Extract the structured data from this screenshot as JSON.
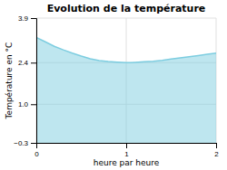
{
  "chart_data": {
    "type": "area",
    "title": "Evolution de la température",
    "x_label": "heure par heure",
    "y_label": "Température en °C",
    "x": [
      0,
      0.1,
      0.2,
      0.3,
      0.4,
      0.5,
      0.6,
      0.7,
      0.8,
      0.9,
      1.0,
      1.05,
      1.1,
      1.2,
      1.3,
      1.4,
      1.5,
      1.6,
      1.7,
      1.8,
      1.9,
      2.0
    ],
    "y": [
      3.25,
      3.1,
      2.95,
      2.83,
      2.72,
      2.62,
      2.53,
      2.47,
      2.44,
      2.42,
      2.4,
      2.4,
      2.41,
      2.43,
      2.45,
      2.48,
      2.52,
      2.56,
      2.6,
      2.64,
      2.68,
      2.72
    ],
    "xlim": [
      0,
      2
    ],
    "ylim": [
      -0.3,
      3.9
    ],
    "xticks": [
      0,
      1,
      2
    ],
    "yticks": [
      {
        "value": -0.3,
        "label": "−0.3"
      },
      {
        "value": 1.0,
        "label": "1.0"
      },
      2.4,
      3.9
    ],
    "color": "#7dcde0",
    "grid": true
  }
}
